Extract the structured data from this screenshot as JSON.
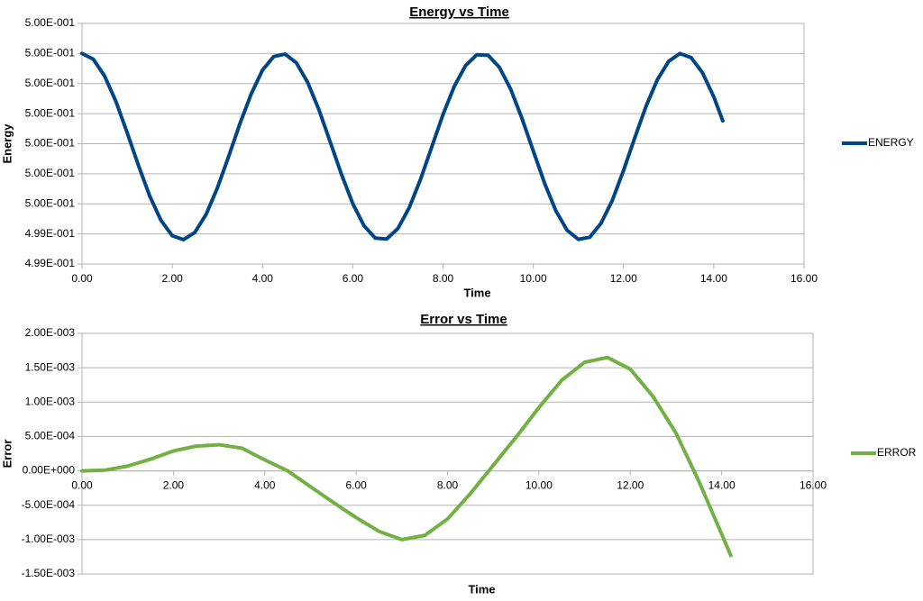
{
  "chart_data": [
    {
      "type": "line",
      "title": "Energy vs Time",
      "x_label": "Time",
      "y_label": "Energy",
      "grid": true,
      "legend": "right",
      "x": [
        0,
        0.25,
        0.5,
        0.75,
        1,
        1.25,
        1.5,
        1.75,
        2,
        2.25,
        2.5,
        2.75,
        3,
        3.25,
        3.5,
        3.75,
        4,
        4.25,
        4.5,
        4.75,
        5,
        5.25,
        5.5,
        5.75,
        6,
        6.25,
        6.5,
        6.75,
        7,
        7.25,
        7.5,
        7.75,
        8,
        8.25,
        8.5,
        8.75,
        9,
        9.25,
        9.5,
        9.75,
        10,
        10.25,
        10.5,
        10.75,
        11,
        11.25,
        11.5,
        11.75,
        12,
        12.25,
        12.5,
        12.75,
        13,
        13.25,
        13.5,
        13.75,
        14,
        14.2
      ],
      "series": [
        {
          "name": "ENERGY",
          "color": "#004586",
          "values": [
            0.5,
            0.4999981,
            0.4999925,
            0.4999841,
            0.4999737,
            0.4999628,
            0.4999526,
            0.4999445,
            0.4999394,
            0.4999381,
            0.4999405,
            0.4999465,
            0.4999553,
            0.4999658,
            0.4999767,
            0.4999866,
            0.4999945,
            0.499999,
            0.4999998,
            0.4999969,
            0.4999904,
            0.4999813,
            0.4999706,
            0.4999598,
            0.4999501,
            0.4999427,
            0.4999386,
            0.4999383,
            0.4999418,
            0.4999487,
            0.4999581,
            0.4999689,
            0.4999797,
            0.4999891,
            0.499996,
            0.4999996,
            0.4999994,
            0.4999954,
            0.4999881,
            0.4999784,
            0.4999676,
            0.4999569,
            0.4999477,
            0.4999412,
            0.4999382,
            0.4999389,
            0.4999435,
            0.4999511,
            0.4999611,
            0.499972,
            0.4999825,
            0.4999913,
            0.4999974,
            0.5,
            0.4999986,
            0.4999936,
            0.4999856,
            0.4999776
          ]
        }
      ],
      "xlim": [
        0,
        16
      ],
      "xticks": [
        {
          "value": 0,
          "label": "0.00"
        },
        {
          "value": 2,
          "label": "2.00"
        },
        {
          "value": 4,
          "label": "4.00"
        },
        {
          "value": 6,
          "label": "6.00"
        },
        {
          "value": 8,
          "label": "8.00"
        },
        {
          "value": 10,
          "label": "10.00"
        },
        {
          "value": 12,
          "label": "12.00"
        },
        {
          "value": 14,
          "label": "14.00"
        },
        {
          "value": 16,
          "label": "16.00"
        }
      ],
      "ylim": [
        0.49993,
        0.50001
      ],
      "yticks": [
        {
          "value": 0.49993,
          "label": "4.99E-001"
        },
        {
          "value": 0.49994,
          "label": "4.99E-001"
        },
        {
          "value": 0.49995,
          "label": "5.00E-001"
        },
        {
          "value": 0.49996,
          "label": "5.00E-001"
        },
        {
          "value": 0.49997,
          "label": "5.00E-001"
        },
        {
          "value": 0.49998,
          "label": "5.00E-001"
        },
        {
          "value": 0.49999,
          "label": "5.00E-001"
        },
        {
          "value": 0.5,
          "label": "5.00E-001"
        },
        {
          "value": 0.50001,
          "label": "5.00E-001"
        }
      ]
    },
    {
      "type": "line",
      "title": "Error vs Time",
      "x_label": "Time",
      "y_label": "Error",
      "grid": true,
      "legend": "right",
      "x": [
        0,
        0.5,
        1,
        1.5,
        2,
        2.5,
        3,
        3.5,
        4,
        4.5,
        5,
        5.5,
        6,
        6.5,
        7,
        7.5,
        8,
        8.5,
        9,
        9.5,
        10,
        10.5,
        11,
        11.5,
        12,
        12.5,
        13,
        13.5,
        14,
        14.2
      ],
      "series": [
        {
          "name": "ERROR",
          "color": "#72b043",
          "values": [
            0,
            1e-05,
            7e-05,
            0.00017,
            0.00029,
            0.00036,
            0.00038,
            0.00033,
            0.00016,
            0,
            -0.00023,
            -0.00046,
            -0.00068,
            -0.00088,
            -0.001,
            -0.00094,
            -0.0007,
            -0.00033,
            8e-05,
            0.00049,
            0.00092,
            0.00132,
            0.00158,
            0.00165,
            0.00148,
            0.00108,
            0.00055,
            -0.00015,
            -0.00092,
            -0.00123
          ]
        }
      ],
      "xlim": [
        0,
        16
      ],
      "xticks": [
        {
          "value": 0,
          "label": "0.00"
        },
        {
          "value": 2,
          "label": "2.00"
        },
        {
          "value": 4,
          "label": "4.00"
        },
        {
          "value": 6,
          "label": "6.00"
        },
        {
          "value": 8,
          "label": "8.00"
        },
        {
          "value": 10,
          "label": "10.00"
        },
        {
          "value": 12,
          "label": "12.00"
        },
        {
          "value": 14,
          "label": "14.00"
        },
        {
          "value": 16,
          "label": "16.00"
        }
      ],
      "ylim": [
        -0.0015,
        0.002
      ],
      "yticks": [
        {
          "value": -0.0015,
          "label": "-1.50E-003"
        },
        {
          "value": -0.001,
          "label": "-1.00E-003"
        },
        {
          "value": -0.0005,
          "label": "-5.00E-004"
        },
        {
          "value": 0,
          "label": "0.00E+000"
        },
        {
          "value": 0.0005,
          "label": "5.00E-004"
        },
        {
          "value": 0.001,
          "label": "1.00E-003"
        },
        {
          "value": 0.0015,
          "label": "1.50E-003"
        },
        {
          "value": 0.002,
          "label": "2.00E-003"
        }
      ]
    }
  ]
}
